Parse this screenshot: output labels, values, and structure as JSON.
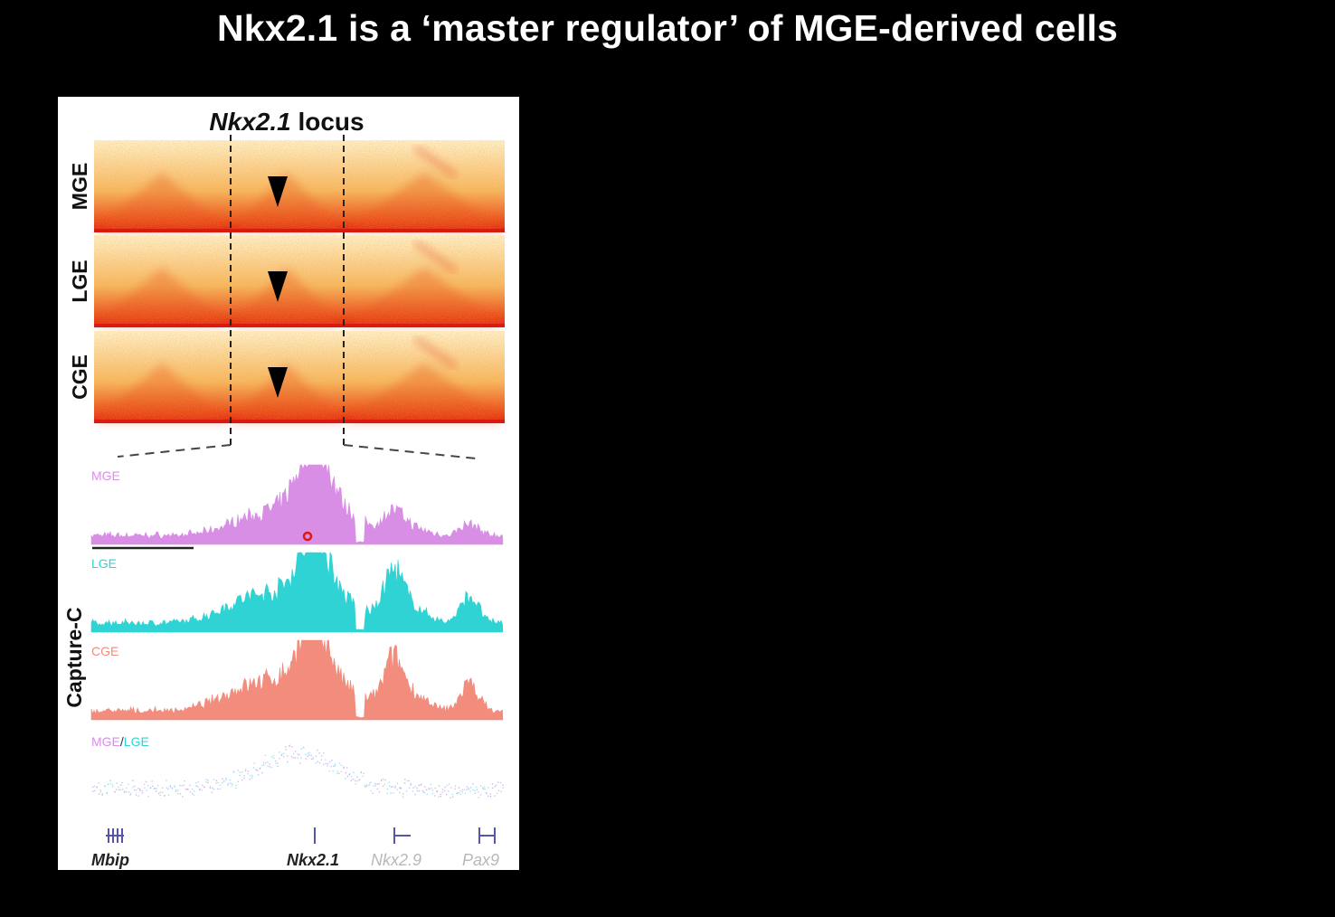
{
  "slide": {
    "title": "Nkx2.1 is a ‘master regulator’ of MGE-derived cells"
  },
  "figure": {
    "locus_title_gene": "Nkx2.1",
    "locus_title_suffix": " locus",
    "hic_tracks": [
      {
        "label": "MGE"
      },
      {
        "label": "LGE"
      },
      {
        "label": "CGE"
      }
    ],
    "capture_c_label": "Capture-C",
    "capture_tracks": [
      {
        "label": "MGE",
        "color": "#d98ee6"
      },
      {
        "label": "LGE",
        "color": "#2fd3d3"
      },
      {
        "label": "CGE",
        "color": "#f28c7d"
      }
    ],
    "ratio_label": {
      "part1": "MGE",
      "sep": "/",
      "part2": "LGE"
    },
    "genes": [
      {
        "name": "Mbip",
        "color": "#222222"
      },
      {
        "name": "Nkx2.1",
        "color": "#222222"
      },
      {
        "name": "Nkx2.9",
        "color": "#b8b8b8"
      },
      {
        "name": "Pax9",
        "color": "#b8b8b8"
      }
    ],
    "colors": {
      "hic_high": "#e01810",
      "hic_mid": "#f59a2a",
      "hic_low": "#fff4d0",
      "gene_track": "#5555aa",
      "viewpoint": "#e01810"
    }
  }
}
